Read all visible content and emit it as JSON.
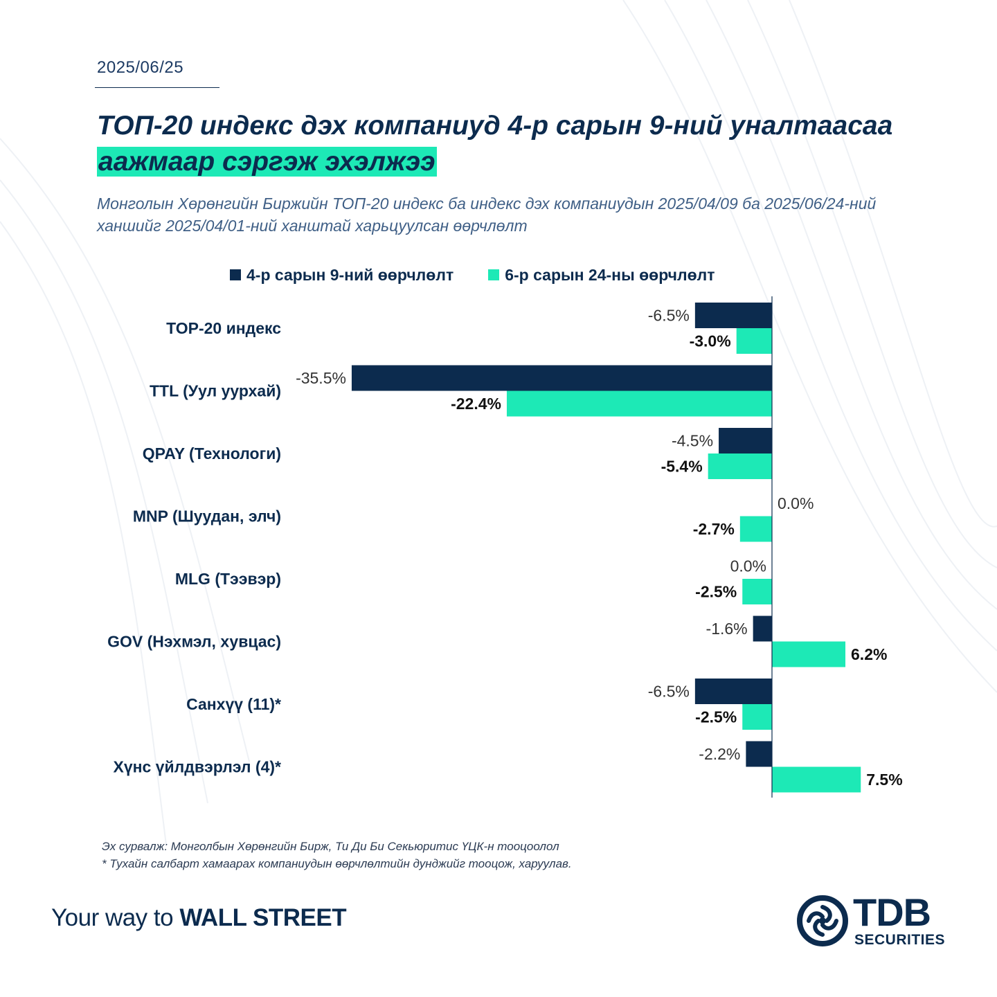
{
  "header": {
    "date": "2025/06/25",
    "title_part1": "ТОП-20 индекс дэх компаниуд 4-р сарын 9-ний уналтаасаа ",
    "title_highlight": "аажмаар сэргэж эхэлжээ",
    "subtitle": "Монголын Хөрөнгийн Биржийн ТОП-20 индекс ба индекс дэх компаниудын 2025/04/09 ба 2025/06/24-ний ханшийг 2025/04/01-ний ханштай харьцуулсан өөрчлөлт"
  },
  "colors": {
    "navy": "#0c2b4e",
    "mint": "#1de9b6"
  },
  "chart_data": {
    "type": "bar",
    "orientation": "horizontal",
    "categories": [
      "TOP-20 индекс",
      "TTL (Уул уурхай)",
      "QPAY (Технологи)",
      "MNP (Шуудан, элч)",
      "MLG (Тээвэр)",
      "GOV (Нэхмэл, хувцас)",
      "Санхүү (11)*",
      "Хүнс үйлдвэрлэл (4)*"
    ],
    "series": [
      {
        "name": "4-р сарын 9-ний өөрчлөлт",
        "color": "#0c2b4e",
        "values": [
          -6.5,
          -35.5,
          -4.5,
          0.0,
          0.0,
          -1.6,
          -6.5,
          -2.2
        ],
        "labels": [
          "-6.5%",
          "-35.5%",
          "-4.5%",
          "0.0%",
          "0.0%",
          "-1.6%",
          "-6.5%",
          "-2.2%"
        ]
      },
      {
        "name": "6-р сарын 24-ны өөрчлөлт",
        "color": "#1de9b6",
        "values": [
          -3.0,
          -22.4,
          -5.4,
          -2.7,
          -2.5,
          6.2,
          -2.5,
          7.5
        ],
        "labels": [
          "-3.0%",
          "-22.4%",
          "-5.4%",
          "-2.7%",
          "-2.5%",
          "6.2%",
          "-2.5%",
          "7.5%"
        ]
      }
    ],
    "xlim": [
      -36,
      8
    ],
    "grid": false,
    "legend_position": "top"
  },
  "footnotes": {
    "source": "Эх сурвалж: Монголбын Хөрөнгийн Бирж, Ти Ди Би Секьюритис ҮЦК-н тооцоолол",
    "note": "* Тухайн салбарт хамаарах компаниудын өөрчлөлтийн дунджийг тооцож, харуулав."
  },
  "branding": {
    "tagline_light": "Your way to ",
    "tagline_strong": "WALL STREET",
    "logo_main": "TDB",
    "logo_sub": "SECURITIES"
  }
}
